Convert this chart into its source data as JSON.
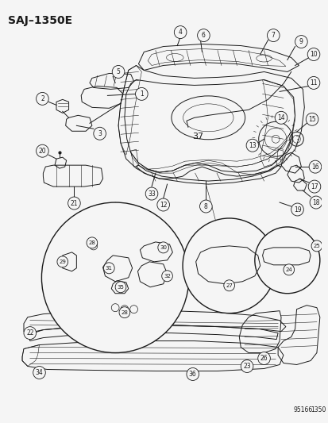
{
  "title": "SAJ–1350E",
  "bg_color": "#f5f5f5",
  "line_color": "#1a1a1a",
  "fig_width": 4.14,
  "fig_height": 5.33,
  "dpi": 100,
  "bottom_right_text1": "95166",
  "bottom_right_text2": "1350",
  "lw": 0.7,
  "lw_thin": 0.4,
  "lw_thick": 1.0
}
